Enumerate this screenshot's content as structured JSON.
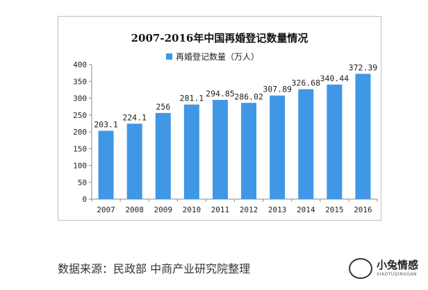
{
  "chart_data": {
    "type": "bar",
    "title": "2007-2016年中国再婚登记数量情况",
    "xlabel": "",
    "ylabel": "",
    "categories": [
      "2007",
      "2008",
      "2009",
      "2010",
      "2011",
      "2012",
      "2013",
      "2014",
      "2015",
      "2016"
    ],
    "series": [
      {
        "name": "再婚登记数量（万人）",
        "values": [
          203.1,
          224.1,
          256,
          281.1,
          294.85,
          286.02,
          307.89,
          326.68,
          340.44,
          372.39
        ],
        "labels": [
          "203.1",
          "224.1",
          "256",
          "281.1",
          "294.85",
          "286.02",
          "307.89",
          "326.68",
          "340.44",
          "372.39"
        ]
      }
    ],
    "ylim": [
      0,
      400
    ],
    "yticks": [
      0,
      50,
      100,
      150,
      200,
      250,
      300,
      350,
      400
    ],
    "grid": false,
    "legend_position": "top",
    "bar_color": "#3f97e6"
  },
  "source_text": "数据来源：民政部 中商产业研究院整理",
  "logo": {
    "name": "小兔情感",
    "subtitle": "XIAOTUQINGGAN"
  }
}
